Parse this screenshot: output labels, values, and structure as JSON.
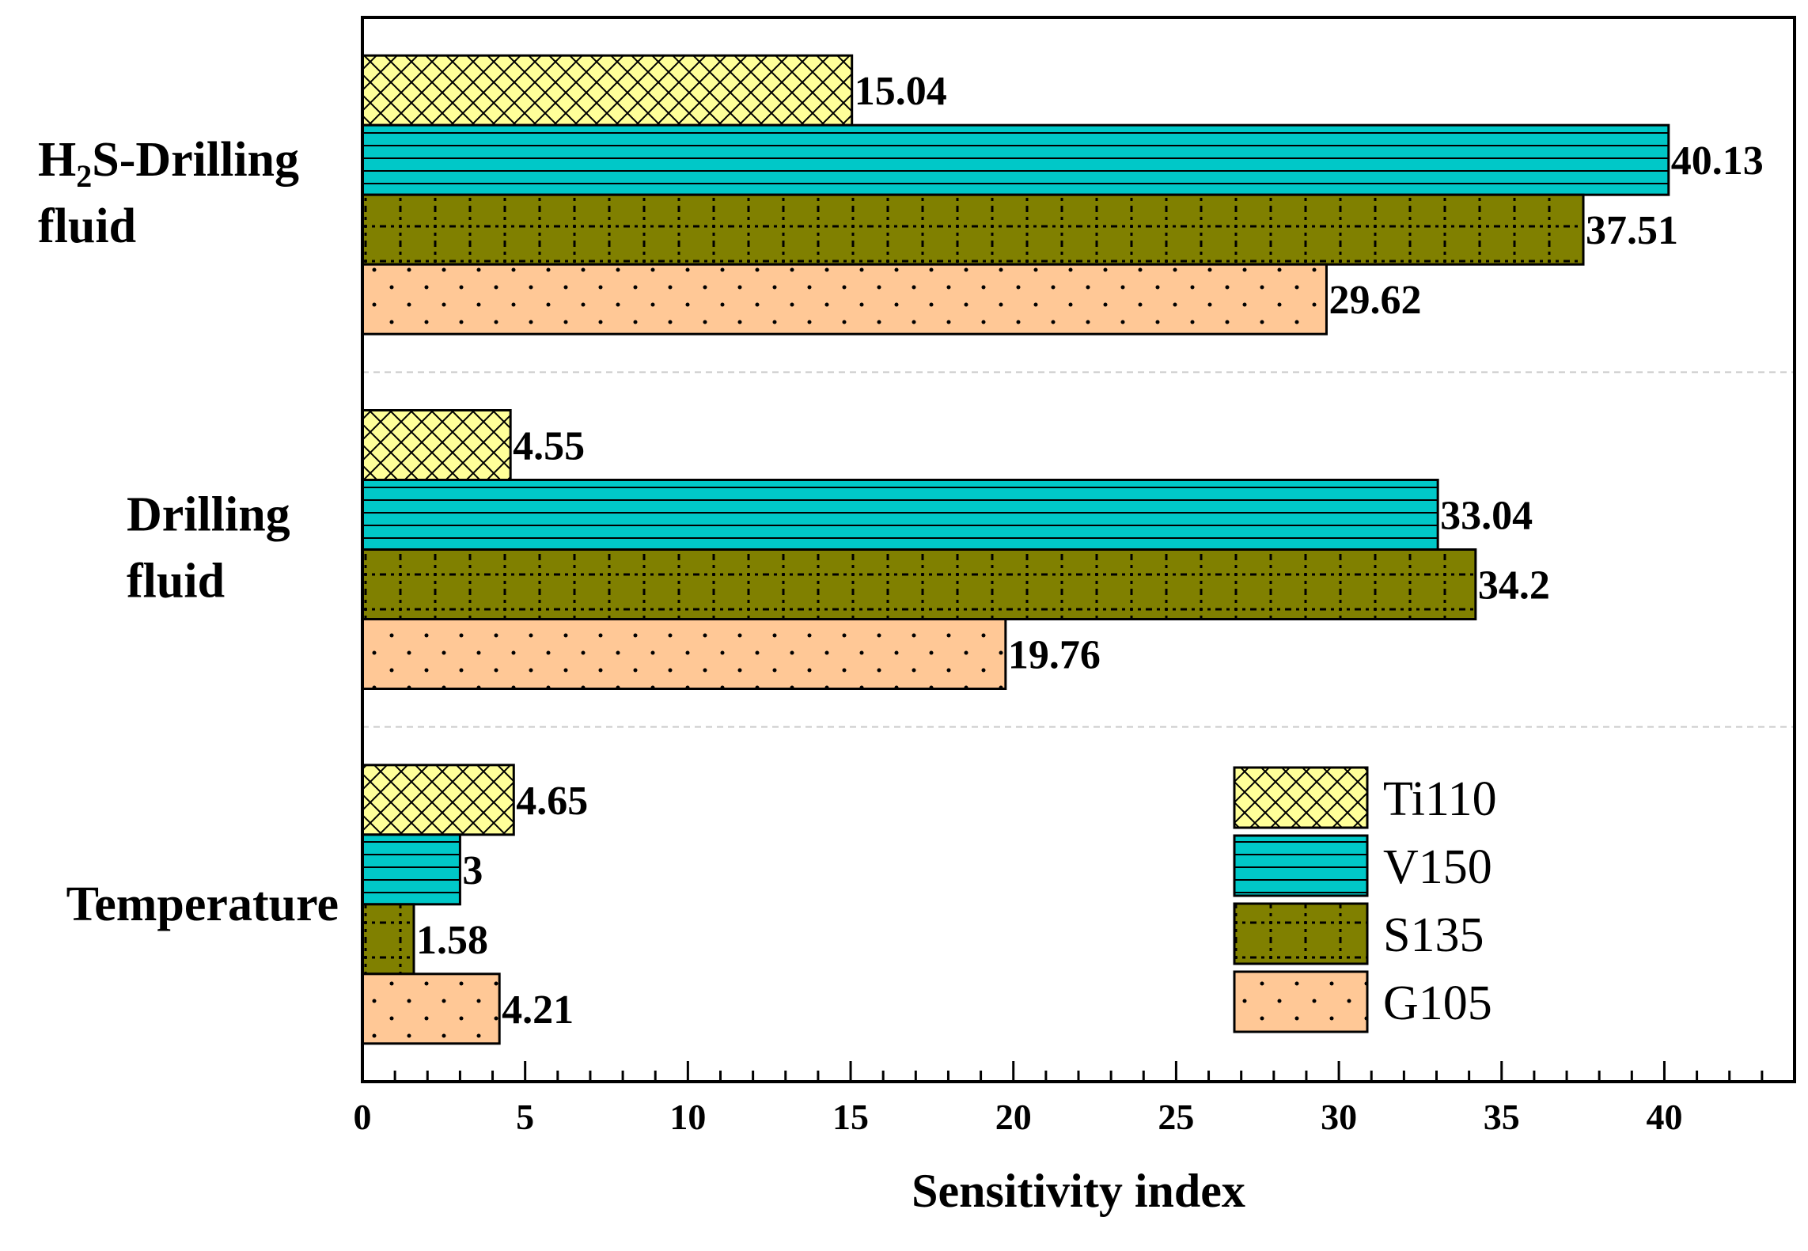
{
  "chart_data": {
    "type": "bar",
    "orientation": "horizontal",
    "categories": [
      "Temperature",
      "Drilling fluid",
      "H2S-Drilling fluid"
    ],
    "category_labels": [
      {
        "lines": [
          "Temperature"
        ]
      },
      {
        "lines": [
          "Drilling",
          "fluid"
        ]
      },
      {
        "lines": [
          "H",
          "S-Drilling",
          "fluid"
        ],
        "subscript": "2"
      }
    ],
    "series": [
      {
        "name": "Ti110",
        "color": "#FFFF99",
        "pattern": "crosshatch",
        "values": [
          4.65,
          4.55,
          15.04
        ],
        "labels": [
          "4.65",
          "4.55",
          "15.04"
        ]
      },
      {
        "name": "V150",
        "color": "#00C8C8",
        "pattern": "horizontal-lines",
        "values": [
          3,
          33.04,
          40.13
        ],
        "labels": [
          "3",
          "33.04",
          "40.13"
        ]
      },
      {
        "name": "S135",
        "color": "#808000",
        "pattern": "dotted-grid",
        "values": [
          1.58,
          34.2,
          37.51
        ],
        "labels": [
          "1.58",
          "34.2",
          "37.51"
        ]
      },
      {
        "name": "G105",
        "color": "#FFC896",
        "pattern": "dots",
        "values": [
          4.21,
          19.76,
          29.62
        ],
        "labels": [
          "4.21",
          "19.76",
          "29.62"
        ]
      }
    ],
    "xlabel": "Sensitivity index",
    "ylabel": "",
    "xlim": [
      0,
      44
    ],
    "xticks": [
      0,
      5,
      10,
      15,
      20,
      25,
      30,
      35,
      40
    ],
    "minor_tick_step": 1,
    "grid": "dashed separators between categories",
    "legend_position": "bottom-right"
  }
}
